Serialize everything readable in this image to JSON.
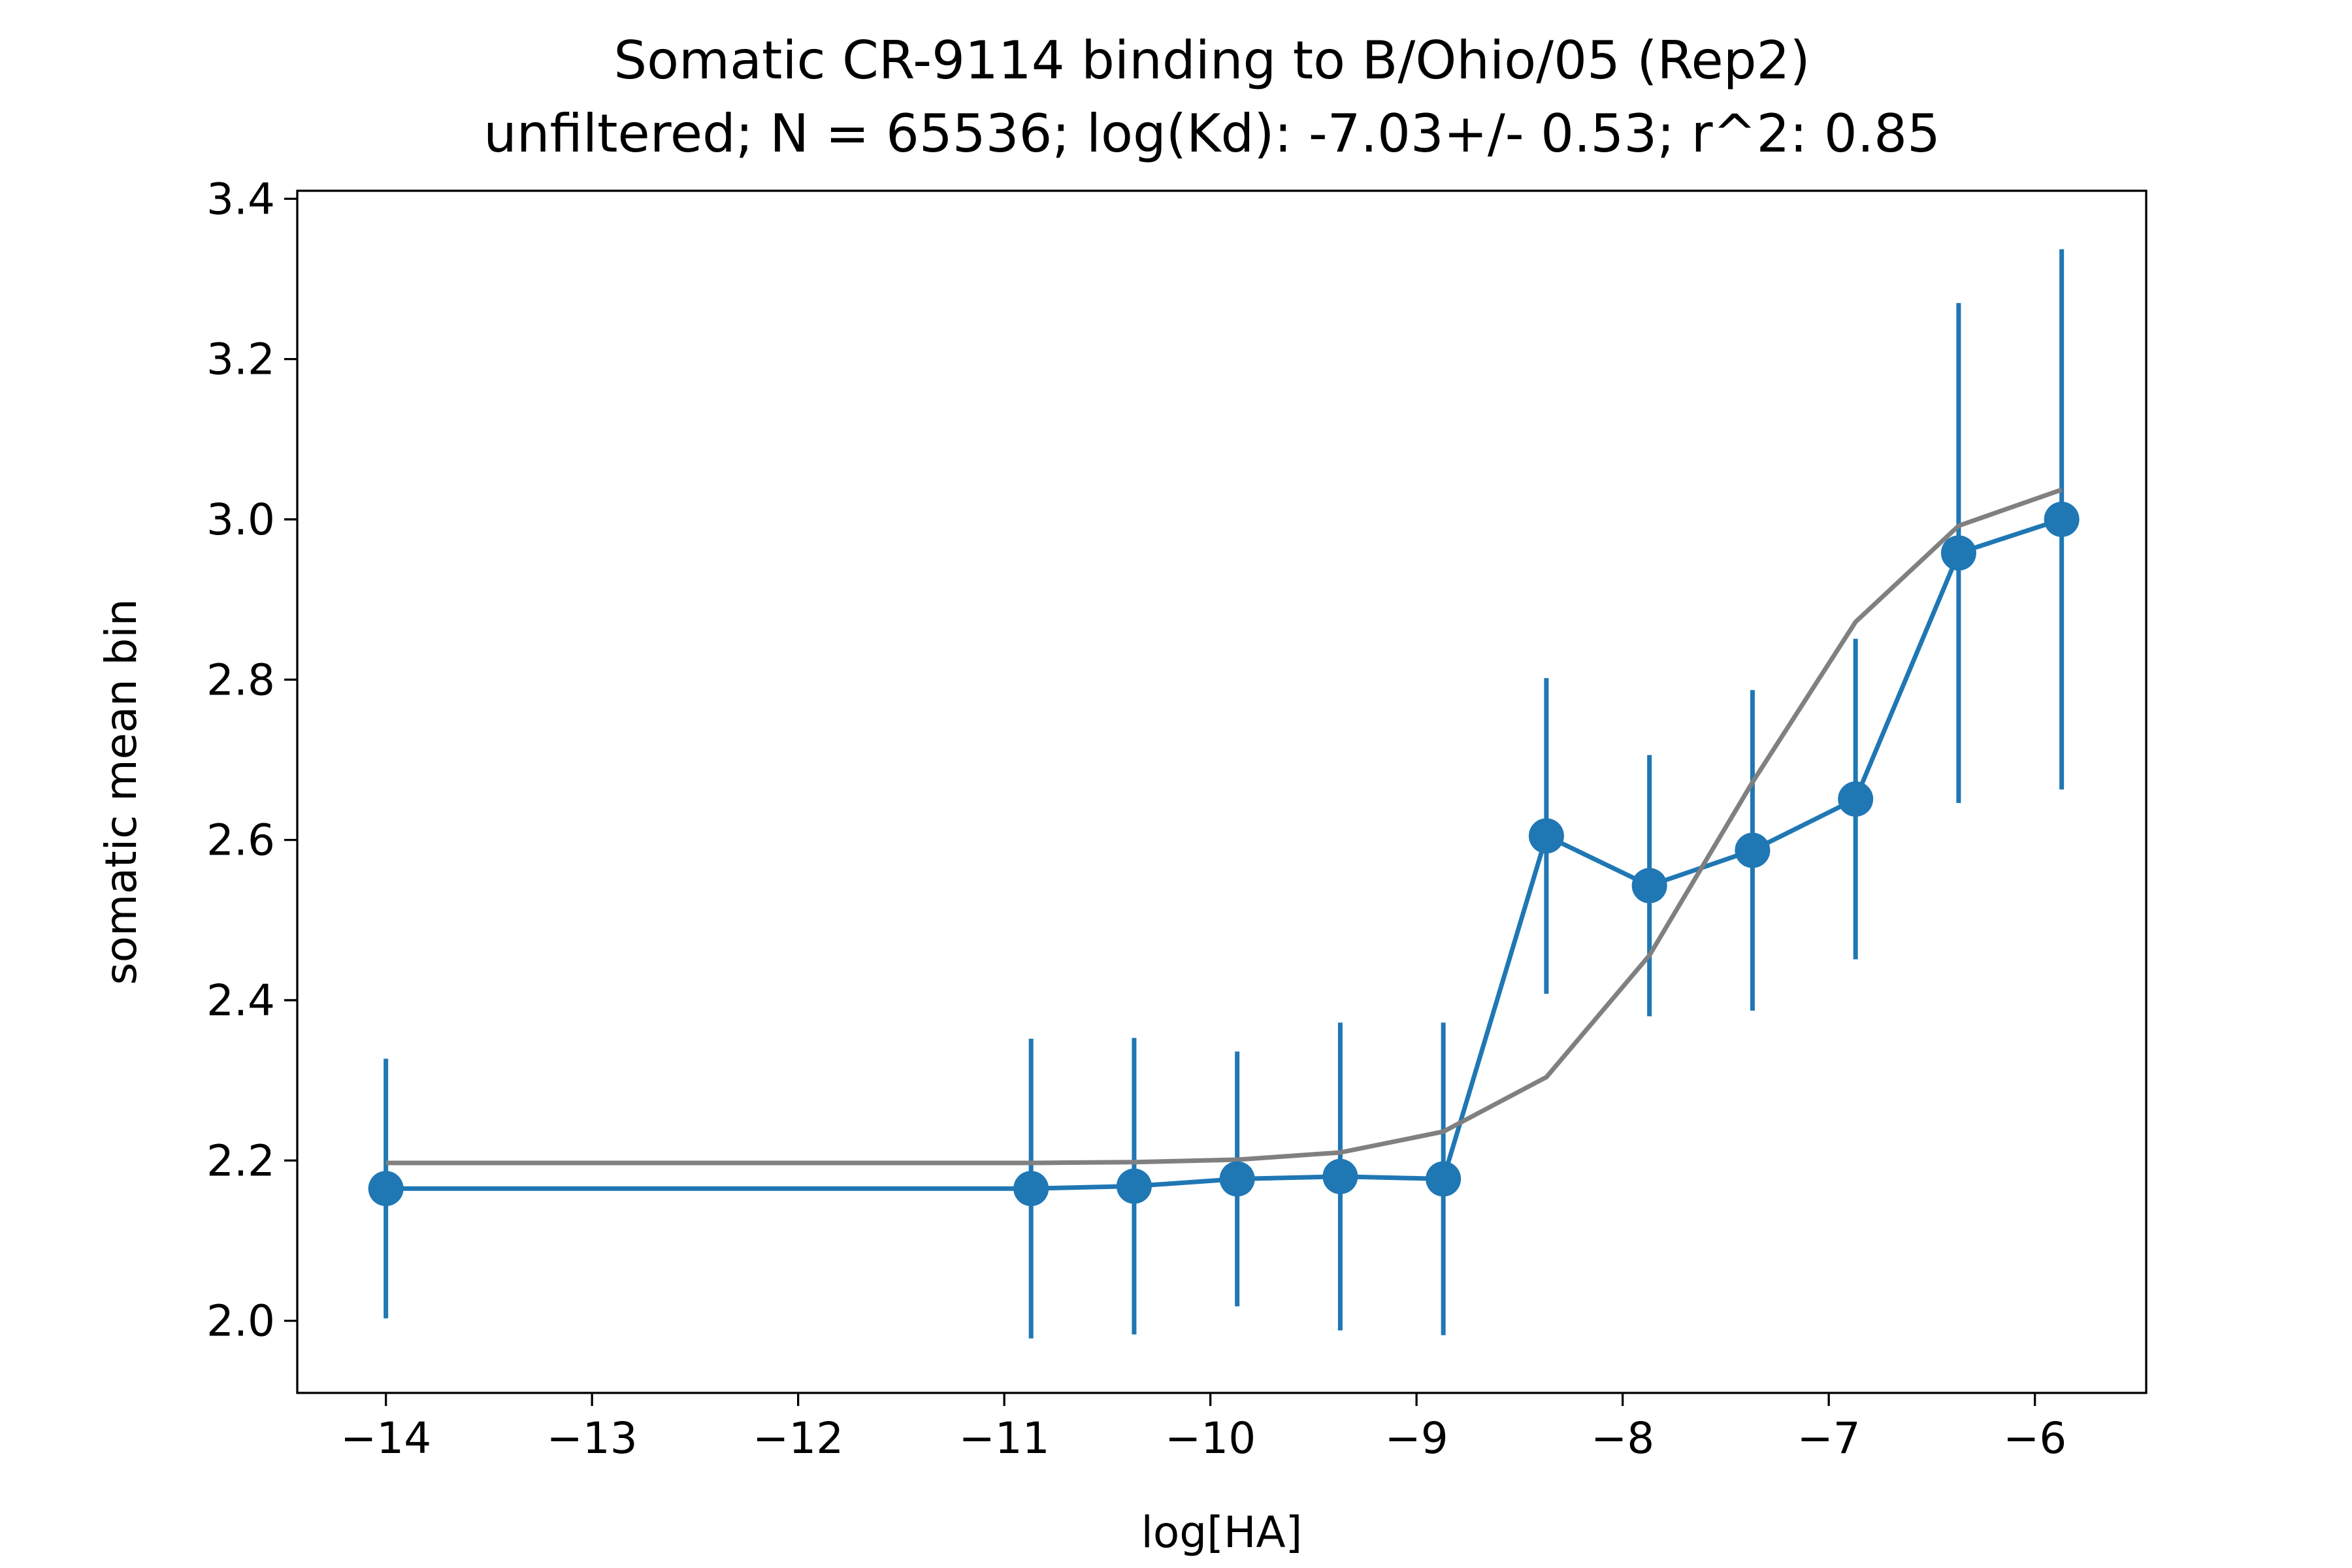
{
  "chart_data": {
    "type": "line",
    "title": "Somatic CR-9114 binding to B/Ohio/05 (Rep2)",
    "subtitle": "unfiltered; N = 65536; log(Kd): -7.03+/- 0.53; r^2: 0.85",
    "xlabel": "log[HA]",
    "ylabel": "somatic mean bin",
    "xlim": [
      -14.43,
      -5.46
    ],
    "ylim": [
      1.91,
      3.41
    ],
    "xticks": [
      -14,
      -13,
      -12,
      -11,
      -10,
      -9,
      -8,
      -7,
      -6
    ],
    "xtick_labels": [
      "−14",
      "−13",
      "−12",
      "−11",
      "−10",
      "−9",
      "−8",
      "−7",
      "−6"
    ],
    "yticks": [
      2.0,
      2.2,
      2.4,
      2.6,
      2.8,
      3.0,
      3.2,
      3.4
    ],
    "ytick_labels": [
      "2.0",
      "2.2",
      "2.4",
      "2.6",
      "2.8",
      "3.0",
      "3.2",
      "3.4"
    ],
    "grid": false,
    "legend": "none",
    "series": [
      {
        "kind": "errorbar-line",
        "color": "#1f77b4",
        "x": [
          -14.0,
          -10.87,
          -10.37,
          -9.87,
          -9.37,
          -8.87,
          -8.37,
          -7.87,
          -7.37,
          -6.87,
          -6.37,
          -5.87
        ],
        "y": [
          2.165,
          2.165,
          2.168,
          2.177,
          2.18,
          2.177,
          2.605,
          2.543,
          2.587,
          2.651,
          2.958,
          3.0
        ],
        "err": [
          0.162,
          0.187,
          0.185,
          0.159,
          0.192,
          0.195,
          0.197,
          0.163,
          0.2,
          0.2,
          0.312,
          0.337
        ]
      },
      {
        "kind": "fit-line",
        "color": "#808080",
        "x": [
          -14.0,
          -10.87,
          -10.37,
          -9.87,
          -9.37,
          -8.87,
          -8.37,
          -7.87,
          -7.37,
          -6.87,
          -6.37,
          -5.87
        ],
        "y": [
          2.197,
          2.197,
          2.198,
          2.201,
          2.21,
          2.236,
          2.304,
          2.456,
          2.672,
          2.872,
          2.992,
          3.037
        ]
      }
    ]
  }
}
